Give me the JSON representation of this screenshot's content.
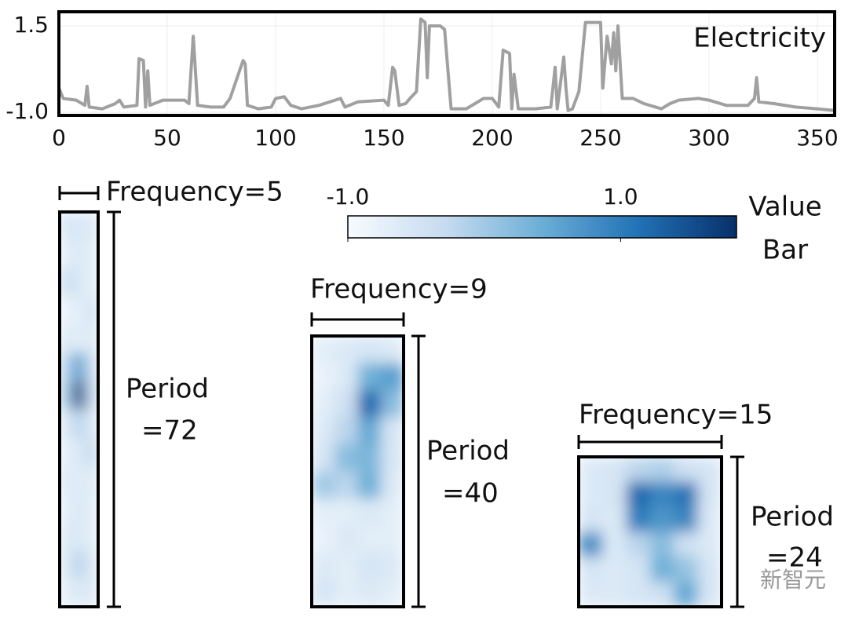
{
  "chart_data": [
    {
      "type": "line",
      "title": "Electricity",
      "x": [
        0,
        2,
        8,
        12,
        13,
        14,
        20,
        26,
        28,
        30,
        36,
        37,
        39,
        40,
        41,
        42,
        48,
        58,
        60,
        61,
        62,
        63,
        64,
        70,
        76,
        79,
        85,
        86,
        87,
        92,
        98,
        100,
        104,
        107,
        112,
        120,
        130,
        132,
        138,
        150,
        152,
        154,
        155,
        157,
        160,
        162,
        165,
        167,
        169,
        170,
        171,
        176,
        178,
        181,
        188,
        196,
        200,
        203,
        205,
        208,
        209,
        210,
        212,
        220,
        227,
        229,
        230,
        233,
        234,
        235,
        237,
        240,
        243,
        250,
        251,
        253,
        255,
        256,
        257,
        258,
        260,
        265,
        270,
        278,
        282,
        286,
        295,
        300,
        308,
        318,
        321,
        322,
        323,
        330,
        340,
        350,
        358
      ],
      "series": [
        {
          "color": "#a0a0a0",
          "values": [
            -0.3,
            -0.6,
            -0.65,
            -0.8,
            -0.25,
            -0.85,
            -0.9,
            -0.75,
            -0.65,
            -0.85,
            -0.8,
            0.55,
            0.5,
            -0.85,
            0.2,
            -0.8,
            -0.65,
            -0.65,
            -0.75,
            0.2,
            1.2,
            0.2,
            -0.8,
            -0.85,
            -0.85,
            -0.6,
            0.5,
            0.4,
            -0.8,
            -0.9,
            -0.85,
            -0.6,
            -0.55,
            -0.8,
            -0.9,
            -0.8,
            -0.6,
            -0.85,
            -0.7,
            -0.65,
            -0.8,
            0.3,
            0.2,
            -0.8,
            -0.75,
            -0.6,
            -0.4,
            1.7,
            1.6,
            0.0,
            1.5,
            1.5,
            1.4,
            -0.9,
            -0.9,
            -0.6,
            -0.6,
            -0.85,
            0.8,
            0.7,
            -0.9,
            0.1,
            -0.9,
            -0.9,
            -0.85,
            0.3,
            -0.9,
            0.6,
            -0.3,
            -0.95,
            -0.9,
            -0.4,
            1.6,
            1.6,
            -0.3,
            1.2,
            0.4,
            1.3,
            0.2,
            1.5,
            -0.6,
            -0.6,
            -0.75,
            -0.9,
            -0.75,
            -0.65,
            -0.6,
            -0.65,
            -0.8,
            -0.8,
            -0.6,
            0.0,
            -0.7,
            -0.75,
            -0.85,
            -0.9,
            -0.95
          ]
        }
      ],
      "xlim": [
        0,
        358
      ],
      "xticks": [
        0,
        50,
        100,
        150,
        200,
        250,
        300,
        350
      ],
      "ylim": [
        -1.09,
        1.91
      ],
      "yticks": [
        {
          "value": -1.0,
          "label": "-1.0"
        },
        1.5
      ],
      "grid": true
    },
    {
      "type": "heatmap",
      "title": "Frequency=5",
      "ylabel": [
        "Period",
        "=72"
      ],
      "values": [
        [
          -0.5,
          -0.6,
          -0.6
        ],
        [
          -0.7,
          -0.6,
          -0.7
        ],
        [
          -0.3,
          -0.6,
          -0.7
        ],
        [
          -0.8,
          -0.7,
          -0.5
        ],
        [
          -0.6,
          -0.7,
          -0.6
        ],
        [
          -0.2,
          0.6,
          -0.4
        ],
        [
          -0.1,
          1.7,
          -0.3
        ],
        [
          -0.6,
          -0.2,
          -0.6
        ],
        [
          -0.7,
          -0.6,
          -0.3
        ],
        [
          -0.6,
          -0.7,
          -0.6
        ],
        [
          -0.7,
          -0.6,
          -0.7
        ],
        [
          -0.6,
          -0.6,
          -0.7
        ],
        [
          -0.6,
          -0.2,
          -0.6
        ],
        [
          -0.7,
          -0.6,
          -0.6
        ]
      ]
    },
    {
      "type": "heatmap",
      "title": "Frequency=9",
      "ylabel": [
        "Period",
        "=40"
      ],
      "values": [
        [
          -0.7,
          -0.6,
          -0.5,
          -0.6
        ],
        [
          -0.8,
          -0.6,
          0.4,
          0.6
        ],
        [
          -0.7,
          -0.4,
          1.2,
          0.2
        ],
        [
          -0.6,
          -0.2,
          0.5,
          -0.5
        ],
        [
          -0.5,
          0.2,
          0.3,
          -0.5
        ],
        [
          0.0,
          -0.2,
          0.4,
          -0.6
        ],
        [
          -0.7,
          -0.7,
          -0.6,
          -0.7
        ],
        [
          -0.8,
          -0.6,
          -0.7,
          -0.7
        ],
        [
          -0.6,
          -0.7,
          -0.5,
          -0.6
        ],
        [
          -0.5,
          -0.7,
          -0.6,
          -0.7
        ]
      ]
    },
    {
      "type": "heatmap",
      "title": "Frequency=15",
      "ylabel": [
        "Period",
        "=24"
      ],
      "values": [
        [
          -0.6,
          -0.5,
          -0.2,
          -0.1,
          -0.4,
          -0.5
        ],
        [
          -0.6,
          -0.5,
          1.2,
          0.9,
          1.1,
          -0.5
        ],
        [
          -0.5,
          -0.6,
          1.0,
          0.7,
          0.9,
          -0.6
        ],
        [
          0.8,
          -0.6,
          -0.2,
          0.2,
          -0.4,
          -0.6
        ],
        [
          -0.5,
          -0.6,
          -0.5,
          0.4,
          0.1,
          -0.5
        ],
        [
          -0.6,
          -0.6,
          -0.5,
          -0.4,
          0.5,
          -0.5
        ]
      ]
    },
    {
      "type": "colorbar",
      "title": [
        "Value",
        "Bar"
      ],
      "clim": [
        -1.0,
        1.85
      ],
      "ticks": [
        {
          "value": -1.0,
          "label": "-1.0"
        },
        {
          "value": 1.0,
          "label": "1.0"
        }
      ],
      "colors": [
        "#f7fbff",
        "#c6dbef",
        "#6baed6",
        "#2171b5",
        "#08306b"
      ]
    }
  ],
  "watermark": "新智元"
}
